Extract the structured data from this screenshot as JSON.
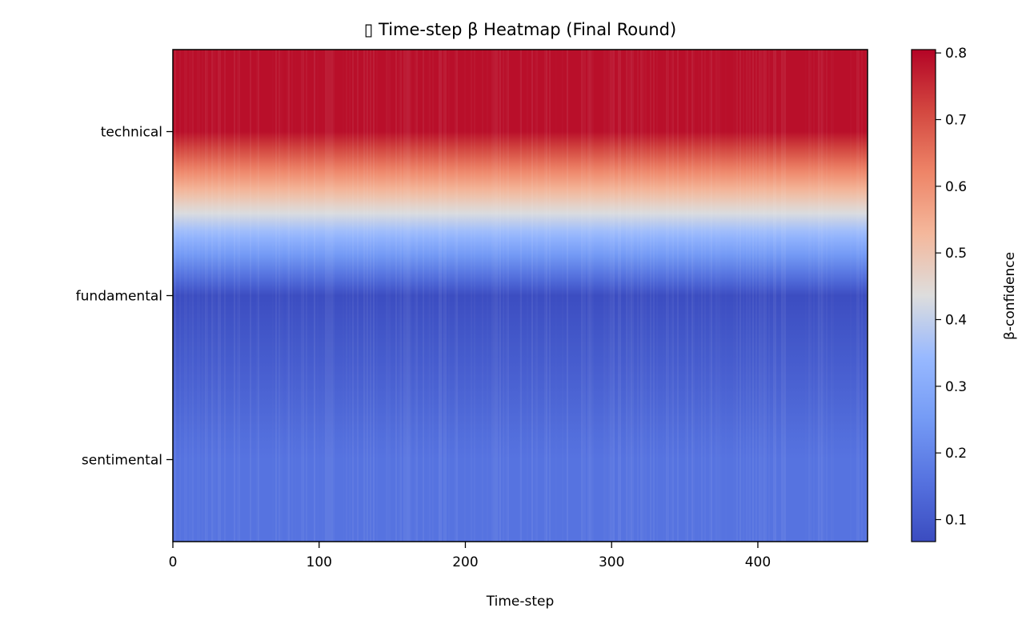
{
  "chart_data": {
    "type": "heatmap",
    "title": "▯ Time-step β Heatmap (Final Round)",
    "xlabel": "Time-step",
    "ylabel": "",
    "rows": [
      "technical",
      "fundamental",
      "sentimental"
    ],
    "xlim": [
      0,
      475
    ],
    "x_ticks": [
      0,
      100,
      200,
      300,
      400
    ],
    "colormap": "coolwarm",
    "colorbar": {
      "label": "β-confidence",
      "range": [
        0.067,
        0.805
      ],
      "ticks": [
        0.1,
        0.2,
        0.3,
        0.4,
        0.5,
        0.6,
        0.7,
        0.8
      ]
    },
    "interpolation": "bilinear",
    "grid": false,
    "series": [
      {
        "name": "technical",
        "typical_value": 0.79,
        "range": [
          0.74,
          0.805
        ]
      },
      {
        "name": "fundamental",
        "typical_value": 0.07,
        "range": [
          0.067,
          0.09
        ]
      },
      {
        "name": "sentimental",
        "typical_value": 0.16,
        "range": [
          0.12,
          0.22
        ]
      }
    ]
  }
}
